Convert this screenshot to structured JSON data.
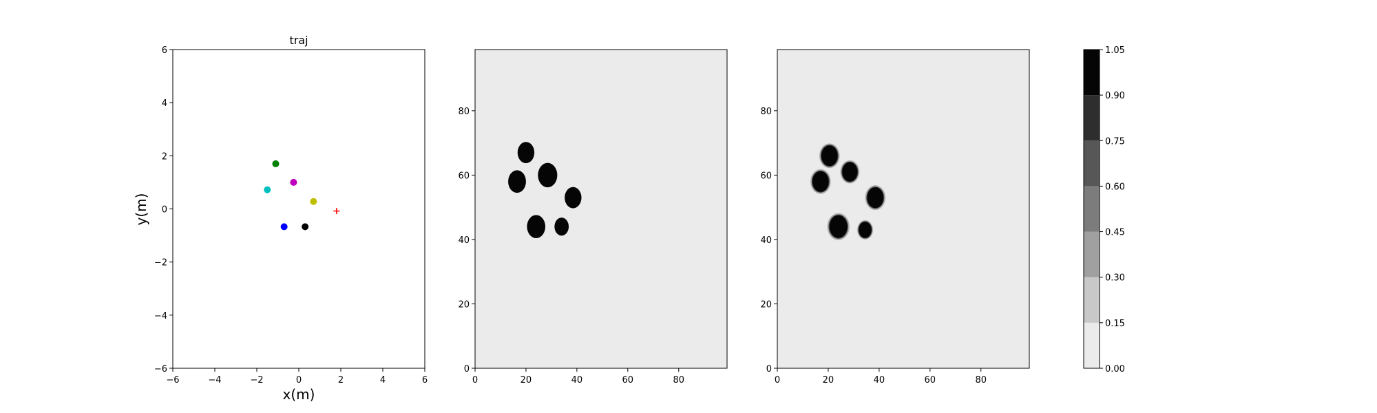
{
  "chart_data": [
    {
      "type": "scatter",
      "title": "traj",
      "xlabel": "x(m)",
      "ylabel": "y(m)",
      "xlim": [
        -6,
        6
      ],
      "ylim": [
        -6,
        6
      ],
      "xticks": [
        -6,
        -4,
        -2,
        0,
        2,
        4,
        6
      ],
      "yticks": [
        -6,
        -4,
        -2,
        0,
        2,
        4,
        6
      ],
      "grid": false,
      "points": [
        {
          "x": -1.1,
          "y": 1.7,
          "color": "#008000"
        },
        {
          "x": -0.25,
          "y": 1.0,
          "color": "#bf00bf"
        },
        {
          "x": -1.5,
          "y": 0.72,
          "color": "#00bfbf"
        },
        {
          "x": 0.7,
          "y": 0.28,
          "color": "#bfbf00"
        },
        {
          "x": -0.7,
          "y": -0.67,
          "color": "#0000ff"
        },
        {
          "x": 0.3,
          "y": -0.67,
          "color": "#000000"
        }
      ],
      "marker_plus": {
        "x": 1.8,
        "y": -0.08,
        "color": "#ff0000"
      }
    },
    {
      "type": "heatmap",
      "xlim": [
        0,
        99
      ],
      "ylim": [
        0,
        99
      ],
      "xticks": [
        0,
        20,
        40,
        60,
        80
      ],
      "yticks": [
        0,
        20,
        40,
        60,
        80
      ],
      "background_value": 0.0,
      "blobs": [
        {
          "x": 20,
          "y": 67,
          "r": 3.3
        },
        {
          "x": 16.5,
          "y": 58,
          "r": 3.5
        },
        {
          "x": 28.5,
          "y": 60,
          "r": 3.8
        },
        {
          "x": 38.5,
          "y": 53,
          "r": 3.3
        },
        {
          "x": 24,
          "y": 44,
          "r": 3.6
        },
        {
          "x": 34,
          "y": 44,
          "r": 2.8
        }
      ]
    },
    {
      "type": "heatmap",
      "xlim": [
        0,
        99
      ],
      "ylim": [
        0,
        99
      ],
      "xticks": [
        0,
        20,
        40,
        60,
        80
      ],
      "yticks": [
        0,
        20,
        40,
        60,
        80
      ],
      "background_value": 0.0,
      "blobs": [
        {
          "x": 20.5,
          "y": 66,
          "r": 3.2
        },
        {
          "x": 17,
          "y": 58,
          "r": 3.2
        },
        {
          "x": 28.5,
          "y": 61,
          "r": 3.0
        },
        {
          "x": 38.5,
          "y": 53,
          "r": 3.2
        },
        {
          "x": 24,
          "y": 44,
          "r": 3.5
        },
        {
          "x": 34.5,
          "y": 43,
          "r": 2.5
        }
      ]
    }
  ],
  "colorbar": {
    "levels": [
      0.0,
      0.15,
      0.3,
      0.45,
      0.6,
      0.75,
      0.9,
      1.05
    ],
    "tick_labels": [
      "0.00",
      "0.15",
      "0.30",
      "0.45",
      "0.60",
      "0.75",
      "0.90",
      "1.05"
    ],
    "colors": [
      "#ebebeb",
      "#c8c8c8",
      "#a0a0a0",
      "#7c7c7c",
      "#575757",
      "#2e2e2e",
      "#050505"
    ]
  }
}
